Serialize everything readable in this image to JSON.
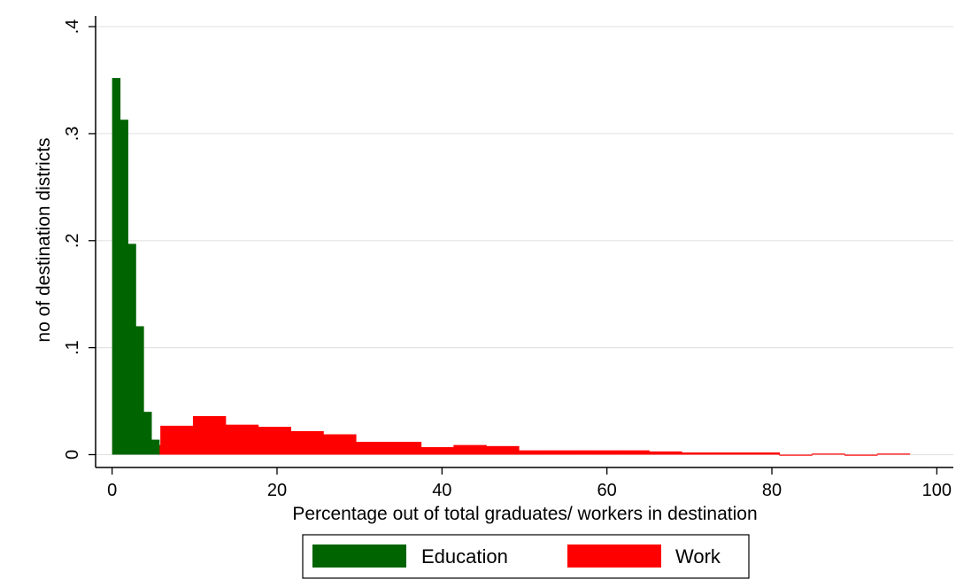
{
  "chart_data": {
    "type": "bar",
    "title": "",
    "xlabel": "Percentage out of total graduates/ workers in destination",
    "ylabel": "no of destination districts",
    "xlim": [
      -2,
      102
    ],
    "ylim": [
      -0.012,
      0.41
    ],
    "x_ticks": [
      0,
      20,
      40,
      60,
      80,
      100
    ],
    "x_tick_labels": [
      "0",
      "20",
      "40",
      "60",
      "80",
      "100"
    ],
    "y_ticks": [
      0,
      0.1,
      0.2,
      0.3,
      0.4
    ],
    "y_tick_labels": [
      "0",
      ".1",
      ".2",
      ".3",
      ".4"
    ],
    "grid": true,
    "legend_position": "bottom",
    "series": [
      {
        "name": "Education",
        "color": "#006400",
        "bin_width": 0.95,
        "bins": [
          [
            0.0,
            0.352
          ],
          [
            0.95,
            0.313
          ],
          [
            1.9,
            0.197
          ],
          [
            2.85,
            0.12
          ],
          [
            3.8,
            0.04
          ],
          [
            4.75,
            0.014
          ]
        ]
      },
      {
        "name": "Work",
        "color": "#ff0000",
        "bin_width": 3.95,
        "bins": [
          [
            1.9,
            0.009
          ],
          [
            5.85,
            0.027
          ],
          [
            9.8,
            0.036
          ],
          [
            13.75,
            0.028
          ],
          [
            17.7,
            0.026
          ],
          [
            21.65,
            0.022
          ],
          [
            25.6,
            0.019
          ],
          [
            29.55,
            0.012
          ],
          [
            33.5,
            0.012
          ],
          [
            37.45,
            0.007
          ],
          [
            41.4,
            0.009
          ],
          [
            45.35,
            0.008
          ],
          [
            49.3,
            0.004
          ],
          [
            53.25,
            0.004
          ],
          [
            57.2,
            0.004
          ],
          [
            61.15,
            0.004
          ],
          [
            65.1,
            0.003
          ],
          [
            69.05,
            0.002
          ],
          [
            73.0,
            0.002
          ],
          [
            76.95,
            0.002
          ],
          [
            80.9,
            -0.001
          ],
          [
            84.85,
            0.001
          ],
          [
            88.8,
            -0.001
          ],
          [
            92.75,
            0.001
          ]
        ]
      }
    ]
  }
}
